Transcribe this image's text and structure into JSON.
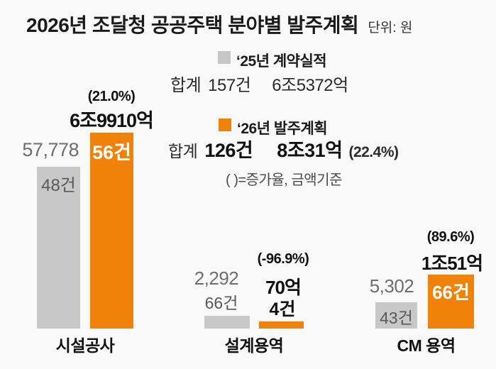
{
  "title": {
    "main": "2026년 조달청 공공주택 분야별 발주계획",
    "unit": "단위: 원"
  },
  "legend": {
    "prev_label": "‘25년 계약실적",
    "prev_total_prefix": "합계",
    "prev_total_count": "157건",
    "prev_total_amount": "6조5372억",
    "plan_label": "‘26년 발주계획",
    "plan_total_prefix": "합계",
    "plan_total_count": "126건",
    "plan_total_amount": "8조31억",
    "plan_total_growth": "(22.4%)",
    "note": "( )=증가율, 금액기준"
  },
  "groups": [
    {
      "label": "시설공사",
      "prev_amount": "57,778",
      "prev_count": "48건",
      "plan_growth": "(21.0%)",
      "plan_amount": "6조9910억",
      "plan_count": "56건"
    },
    {
      "label": "설계용역",
      "prev_amount": "2,292",
      "prev_count": "66건",
      "plan_growth": "(-96.9%)",
      "plan_amount": "70억",
      "plan_count": "4건"
    },
    {
      "label": "CM 용역",
      "prev_amount": "5,302",
      "prev_count": "43건",
      "plan_growth": "(89.6%)",
      "plan_amount": "1조51억",
      "plan_count": "66건"
    }
  ],
  "colors": {
    "accent_orange": "#f0820a",
    "bar_gray": "#c8c8c8",
    "background": "#f9f9f9"
  },
  "chart_data": {
    "type": "bar",
    "title": "2026년 조달청 공공주택 분야별 발주계획",
    "unit": "원",
    "categories": [
      "시설공사",
      "설계용역",
      "CM 용역"
    ],
    "series": [
      {
        "name": "‘25년 계약실적",
        "color": "#c8c8c8",
        "amount_labels": [
          "57,778",
          "2,292",
          "5,302"
        ],
        "values_eok": [
          57778,
          2292,
          5302
        ],
        "counts": [
          48,
          66,
          43
        ]
      },
      {
        "name": "‘26년 발주계획",
        "color": "#f0820a",
        "amount_labels": [
          "6조9910억",
          "70억",
          "1조51억"
        ],
        "values_eok": [
          69910,
          70,
          10051
        ],
        "counts": [
          56,
          4,
          66
        ],
        "growth_pct": [
          21.0,
          -96.9,
          89.6
        ]
      }
    ],
    "totals": {
      "prev": {
        "count": 157,
        "amount": "6조5372억",
        "amount_eok": 65372
      },
      "plan": {
        "count": 126,
        "amount": "8조31억",
        "amount_eok": 80031,
        "growth_pct": 22.4
      }
    },
    "annotation": "( )=증가율, 금액기준",
    "legend_position": "top-center",
    "grid": false
  }
}
